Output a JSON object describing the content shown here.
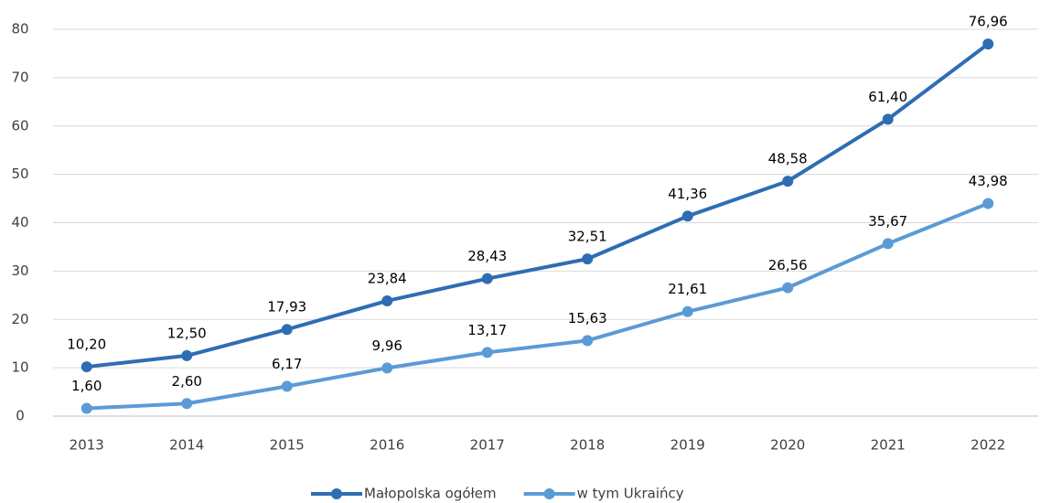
{
  "chart_data": {
    "type": "line",
    "categories": [
      "2013",
      "2014",
      "2015",
      "2016",
      "2017",
      "2018",
      "2019",
      "2020",
      "2021",
      "2022"
    ],
    "series": [
      {
        "name": "Małopolska ogółem",
        "color": "#2e6db4",
        "values": [
          10.2,
          12.5,
          17.93,
          23.84,
          28.43,
          32.51,
          41.36,
          48.58,
          61.4,
          76.96
        ],
        "value_labels": [
          "10,20",
          "12,50",
          "17,93",
          "23,84",
          "28,43",
          "32,51",
          "41,36",
          "48,58",
          "61,40",
          "76,96"
        ]
      },
      {
        "name": "w tym Ukraińcy",
        "color": "#5b9bd5",
        "values": [
          1.6,
          2.6,
          6.17,
          9.96,
          13.17,
          15.63,
          21.61,
          26.56,
          35.67,
          43.98
        ],
        "value_labels": [
          "1,60",
          "2,60",
          "6,17",
          "9,96",
          "13,17",
          "15,63",
          "21,61",
          "26,56",
          "35,67",
          "43,98"
        ]
      }
    ],
    "ylim": [
      0,
      80
    ],
    "yticks": [
      0,
      10,
      20,
      30,
      40,
      50,
      60,
      70,
      80
    ],
    "grid": true,
    "legend": "bottom"
  }
}
